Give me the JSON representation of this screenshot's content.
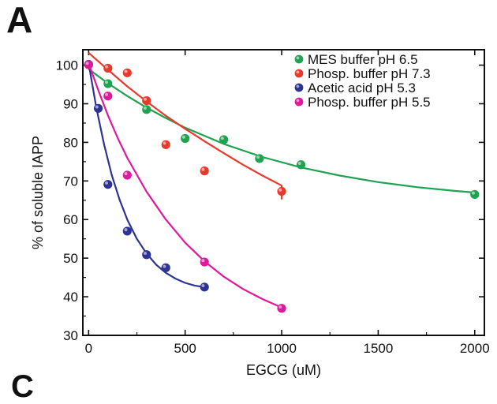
{
  "panel_label": "A",
  "next_panel_label": "C",
  "chart_data": {
    "type": "scatter",
    "title": "",
    "xlabel": "EGCG (uM)",
    "ylabel": "% of soluble IAPP",
    "xlim": [
      -30,
      2050
    ],
    "ylim": [
      30,
      104
    ],
    "xticks": [
      0,
      500,
      1000,
      1500,
      2000
    ],
    "yticks": [
      30,
      40,
      50,
      60,
      70,
      80,
      90,
      100
    ],
    "legend_position": "top-right",
    "grid": false,
    "series": [
      {
        "name": "MES buffer pH 6.5",
        "color": "#1fa350",
        "points": [
          [
            100,
            95.2
          ],
          [
            300,
            88.5
          ],
          [
            500,
            81.0
          ],
          [
            700,
            80.7
          ],
          [
            885,
            75.8
          ],
          [
            1100,
            74.2
          ],
          [
            2000,
            66.5
          ]
        ],
        "fit": [
          [
            0,
            99
          ],
          [
            100,
            95.3
          ],
          [
            200,
            92
          ],
          [
            300,
            89
          ],
          [
            400,
            86.3
          ],
          [
            500,
            83.8
          ],
          [
            700,
            79.6
          ],
          [
            900,
            76.2
          ],
          [
            1100,
            73.5
          ],
          [
            1300,
            71.4
          ],
          [
            1500,
            69.7
          ],
          [
            1700,
            68.4
          ],
          [
            1900,
            67.4
          ],
          [
            2000,
            67.0
          ]
        ]
      },
      {
        "name": "Phosp. buffer pH 7.3",
        "color": "#e83a2c",
        "points": [
          [
            100,
            99.2
          ],
          [
            200,
            98.0
          ],
          [
            300,
            90.8
          ],
          [
            400,
            79.4
          ],
          [
            600,
            72.6
          ],
          [
            1000,
            67.3
          ]
        ],
        "fit": [
          [
            0,
            103.2
          ],
          [
            100,
            98.8
          ],
          [
            200,
            94.5
          ],
          [
            300,
            90.6
          ],
          [
            400,
            86.9
          ],
          [
            500,
            83.5
          ],
          [
            600,
            80.3
          ],
          [
            700,
            77.2
          ],
          [
            800,
            74.2
          ],
          [
            900,
            71.4
          ],
          [
            1000,
            68.8
          ],
          [
            1000,
            65.2
          ]
        ]
      },
      {
        "name": "Acetic acid pH 5.3",
        "color": "#2d3393",
        "points": [
          [
            0,
            100.2
          ],
          [
            50,
            88.8
          ],
          [
            100,
            69.1
          ],
          [
            200,
            57.0
          ],
          [
            300,
            50.9
          ],
          [
            400,
            47.5
          ],
          [
            600,
            42.5
          ]
        ],
        "fit": [
          [
            0,
            100.5
          ],
          [
            40,
            89
          ],
          [
            80,
            79.5
          ],
          [
            120,
            71.5
          ],
          [
            160,
            65.2
          ],
          [
            200,
            60
          ],
          [
            250,
            55
          ],
          [
            300,
            51.2
          ],
          [
            350,
            48.3
          ],
          [
            400,
            46.2
          ],
          [
            450,
            44.7
          ],
          [
            500,
            43.6
          ],
          [
            550,
            42.9
          ],
          [
            600,
            42.5
          ]
        ]
      },
      {
        "name": "Phosp. buffer pH 5.5",
        "color": "#e0189c",
        "points": [
          [
            0,
            100.1
          ],
          [
            100,
            92.0
          ],
          [
            200,
            71.5
          ],
          [
            600,
            49.0
          ],
          [
            1000,
            37.0
          ]
        ],
        "fit": [
          [
            0,
            100.5
          ],
          [
            50,
            93.5
          ],
          [
            100,
            87
          ],
          [
            150,
            81.2
          ],
          [
            200,
            76
          ],
          [
            300,
            67.2
          ],
          [
            400,
            60
          ],
          [
            500,
            54
          ],
          [
            600,
            49.2
          ],
          [
            700,
            45.2
          ],
          [
            800,
            42
          ],
          [
            900,
            39.4
          ],
          [
            1000,
            37.2
          ]
        ]
      }
    ]
  }
}
